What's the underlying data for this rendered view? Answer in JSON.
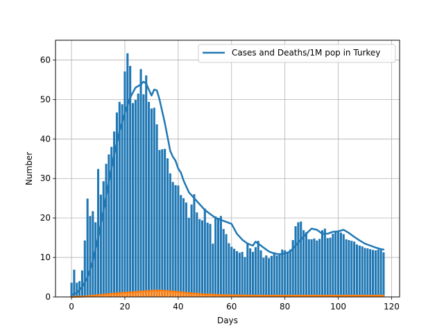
{
  "chart_data": {
    "type": "bar",
    "xlabel": "Days",
    "ylabel": "Number",
    "xlim": [
      -6,
      123
    ],
    "ylim": [
      0,
      65
    ],
    "xticks": [
      0,
      20,
      40,
      60,
      80,
      100,
      120
    ],
    "yticks": [
      0,
      10,
      20,
      30,
      40,
      50,
      60
    ],
    "grid": true,
    "legend_position": "top-right",
    "colors": {
      "cases": "#1f77b4",
      "deaths": "#ff7f0e"
    },
    "series": [
      {
        "kind": "bar",
        "color": "#1f77b4",
        "values": [
          3.6,
          6.9,
          3.6,
          4.0,
          6.7,
          14.3,
          24.9,
          20.5,
          21.7,
          18.9,
          32.4,
          25.9,
          29.3,
          33.7,
          36.1,
          38.0,
          41.9,
          46.7,
          49.4,
          48.8,
          57.1,
          61.7,
          58.5,
          49.1,
          49.9,
          51.5,
          57.7,
          51.3,
          56.1,
          49.4,
          47.7,
          47.9,
          43.7,
          37.2,
          37.4,
          37.5,
          35.1,
          31.3,
          29.1,
          28.3,
          28.2,
          25.8,
          25.0,
          23.9,
          20.0,
          23.4,
          26.0,
          21.4,
          19.7,
          19.4,
          22.4,
          18.8,
          18.5,
          13.5,
          20.4,
          20.0,
          20.5,
          17.2,
          15.9,
          13.6,
          12.7,
          12.2,
          11.6,
          11.2,
          11.4,
          10.1,
          13.7,
          12.3,
          11.4,
          12.6,
          14.2,
          11.8,
          9.9,
          10.5,
          9.8,
          10.4,
          11.3,
          10.5,
          10.6,
          12.0,
          11.8,
          11.3,
          12.0,
          14.4,
          17.9,
          18.9,
          19.1,
          16.9,
          16.4,
          14.6,
          14.6,
          14.8,
          14.3,
          14.7,
          16.9,
          17.3,
          14.9,
          15.0,
          16.0,
          16.7,
          16.7,
          16.3,
          15.9,
          14.6,
          14.4,
          14.2,
          14.0,
          13.3,
          13.0,
          12.8,
          12.4,
          12.3,
          12.1,
          11.9,
          11.8,
          12.0,
          11.9,
          11.3
        ]
      },
      {
        "kind": "bar",
        "color": "#ff7f0e",
        "values": [
          0.0,
          0.0,
          0.0,
          0.0,
          0.02,
          0.05,
          0.1,
          0.15,
          0.2,
          0.25,
          0.35,
          0.45,
          0.55,
          0.65,
          0.75,
          0.8,
          0.85,
          0.9,
          0.95,
          1.0,
          1.05,
          1.1,
          1.15,
          1.2,
          1.25,
          1.3,
          1.35,
          1.4,
          1.45,
          1.5,
          1.55,
          1.6,
          1.6,
          1.6,
          1.55,
          1.5,
          1.45,
          1.4,
          1.35,
          1.3,
          1.25,
          1.2,
          1.1,
          1.0,
          0.95,
          0.9,
          0.85,
          0.8,
          0.75,
          0.7,
          0.65,
          0.6,
          0.6,
          0.55,
          0.5,
          0.5,
          0.45,
          0.45,
          0.4,
          0.4,
          0.4,
          0.35,
          0.35,
          0.3,
          0.3,
          0.3,
          0.3,
          0.3,
          0.3,
          0.3,
          0.3,
          0.3,
          0.3,
          0.3,
          0.3,
          0.3,
          0.3,
          0.3,
          0.3,
          0.3,
          0.3,
          0.3,
          0.3,
          0.3,
          0.3,
          0.3,
          0.3,
          0.3,
          0.3,
          0.3,
          0.3,
          0.3,
          0.3,
          0.3,
          0.3,
          0.3,
          0.3,
          0.3,
          0.3,
          0.3,
          0.3,
          0.3,
          0.3,
          0.3,
          0.3,
          0.3,
          0.3,
          0.3,
          0.3,
          0.3,
          0.3,
          0.3,
          0.3,
          0.3,
          0.3,
          0.3,
          0.3,
          0.3
        ]
      },
      {
        "kind": "line",
        "name": "Cases and Deaths/1M pop in Turkey",
        "color": "#1f77b4",
        "x": [
          0,
          2,
          4,
          6,
          8,
          10,
          12,
          14,
          16,
          18,
          20,
          22,
          24,
          26,
          27,
          28,
          29,
          30,
          31,
          32,
          33,
          35,
          37,
          38,
          39,
          40,
          41,
          42,
          44,
          46,
          48,
          50,
          52,
          54,
          56,
          58,
          60,
          62,
          64,
          66,
          68,
          69,
          70,
          72,
          74,
          76,
          78,
          80,
          82,
          84,
          86,
          88,
          90,
          92,
          94,
          96,
          98,
          100,
          102,
          104,
          106,
          108,
          110,
          112,
          114,
          116,
          117
        ],
        "y": [
          0.5,
          1.0,
          2.5,
          5.0,
          9.0,
          15.0,
          22.0,
          29.0,
          36.0,
          42.0,
          46.5,
          50.5,
          53.0,
          53.8,
          54.5,
          54.0,
          52.5,
          51.0,
          52.5,
          52.3,
          50.0,
          44.0,
          37.0,
          35.5,
          34.5,
          32.5,
          31.5,
          29.5,
          26.5,
          25.0,
          23.5,
          22.0,
          21.0,
          20.0,
          19.5,
          19.0,
          18.5,
          16.0,
          14.5,
          13.5,
          13.0,
          14.0,
          13.5,
          12.5,
          11.5,
          11.0,
          10.8,
          11.0,
          11.5,
          13.0,
          14.5,
          16.0,
          17.3,
          17.0,
          16.0,
          16.0,
          16.5,
          16.6,
          17.0,
          16.2,
          15.2,
          14.3,
          13.5,
          13.0,
          12.5,
          12.1,
          12.0
        ]
      },
      {
        "kind": "line",
        "color": "#ff7f0e",
        "x": [
          0,
          5,
          10,
          15,
          20,
          25,
          30,
          33,
          36,
          40,
          45,
          50,
          55,
          60,
          70,
          80,
          90,
          100,
          110,
          117
        ],
        "y": [
          0.0,
          0.1,
          0.45,
          0.8,
          1.05,
          1.3,
          1.55,
          1.6,
          1.5,
          1.25,
          0.9,
          0.65,
          0.5,
          0.4,
          0.3,
          0.3,
          0.3,
          0.3,
          0.3,
          0.3
        ]
      }
    ]
  }
}
